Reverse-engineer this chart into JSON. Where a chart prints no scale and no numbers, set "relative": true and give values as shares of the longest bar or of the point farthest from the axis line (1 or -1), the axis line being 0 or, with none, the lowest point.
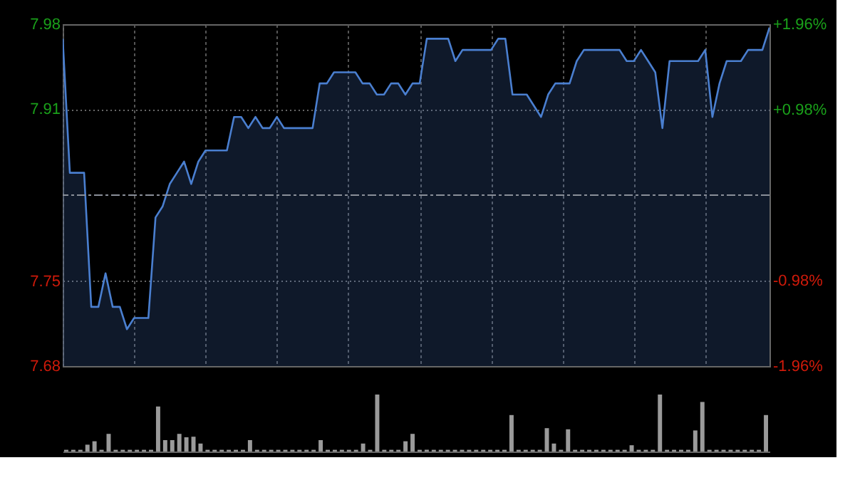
{
  "chart_data": [
    {
      "type": "area",
      "color": "#4a7fd0",
      "grid": true,
      "categories": [
        null,
        null,
        null,
        null,
        null,
        null,
        null,
        null,
        null,
        null,
        null,
        null,
        null,
        null,
        null,
        null,
        null,
        null,
        null,
        null,
        null,
        null,
        null,
        null,
        null,
        null,
        null,
        null,
        null,
        null,
        null,
        null,
        null,
        null,
        null,
        null,
        null,
        null,
        null,
        null,
        null,
        null,
        null,
        null,
        null,
        null,
        null,
        null,
        null,
        null,
        null,
        null,
        null,
        null,
        null,
        null,
        null,
        null,
        null,
        null,
        null,
        null,
        null,
        null,
        null,
        null,
        null,
        null,
        null,
        null,
        null,
        null,
        null,
        null,
        null,
        null,
        null,
        null,
        null,
        null,
        null,
        null,
        null,
        null,
        null,
        null,
        null,
        null,
        null,
        null,
        null,
        null,
        null,
        null,
        null,
        null,
        null,
        null,
        null,
        null
      ],
      "values": [
        7.97,
        7.85,
        7.85,
        7.85,
        7.73,
        7.73,
        7.76,
        7.73,
        7.73,
        7.71,
        7.72,
        7.72,
        7.72,
        7.81,
        7.82,
        7.84,
        7.85,
        7.86,
        7.84,
        7.86,
        7.87,
        7.87,
        7.87,
        7.87,
        7.9,
        7.9,
        7.89,
        7.9,
        7.89,
        7.89,
        7.9,
        7.89,
        7.89,
        7.89,
        7.89,
        7.89,
        7.93,
        7.93,
        7.94,
        7.94,
        7.94,
        7.94,
        7.93,
        7.93,
        7.92,
        7.92,
        7.93,
        7.93,
        7.92,
        7.93,
        7.93,
        7.97,
        7.97,
        7.97,
        7.97,
        7.95,
        7.96,
        7.96,
        7.96,
        7.96,
        7.96,
        7.97,
        7.97,
        7.92,
        7.92,
        7.92,
        7.91,
        7.9,
        7.92,
        7.93,
        7.93,
        7.93,
        7.95,
        7.96,
        7.96,
        7.96,
        7.96,
        7.96,
        7.96,
        7.95,
        7.95,
        7.96,
        7.95,
        7.94,
        7.89,
        7.95,
        7.95,
        7.95,
        7.95,
        7.95,
        7.96,
        7.9,
        7.93,
        7.95,
        7.95,
        7.95,
        7.96,
        7.96,
        7.96,
        7.98
      ],
      "ylim": [
        7.677,
        7.983
      ],
      "yticks": [
        {
          "value": 7.677,
          "label": "7.68"
        },
        {
          "value": 7.753,
          "label": "7.75"
        },
        {
          "value": 7.907,
          "label": "7.91"
        },
        {
          "value": 7.983,
          "label": "7.98"
        }
      ],
      "y2lim": [
        -1.96,
        1.96
      ],
      "y2ticks": [
        {
          "value": -1.96,
          "label": "-1.96%"
        },
        {
          "value": -0.98,
          "label": "-0.98%"
        },
        {
          "value": 0.98,
          "label": "+0.98%"
        },
        {
          "value": 1.96,
          "label": "+1.96%"
        }
      ],
      "ref_lines": [
        {
          "axis": "y2",
          "value": 0,
          "line_style": "dashed",
          "color": "#8a8f99"
        }
      ]
    },
    {
      "type": "bar",
      "relative": true,
      "color": "#9a9a9a",
      "categories": [
        null,
        null,
        null,
        null,
        null,
        null,
        null,
        null,
        null,
        null,
        null,
        null,
        null,
        null,
        null,
        null,
        null,
        null,
        null,
        null,
        null,
        null,
        null,
        null,
        null,
        null,
        null,
        null,
        null,
        null,
        null,
        null,
        null,
        null,
        null,
        null,
        null,
        null,
        null,
        null,
        null,
        null,
        null,
        null,
        null,
        null,
        null,
        null,
        null,
        null,
        null,
        null,
        null,
        null,
        null,
        null,
        null,
        null,
        null,
        null,
        null,
        null,
        null,
        null,
        null,
        null,
        null,
        null,
        null,
        null,
        null,
        null,
        null,
        null,
        null,
        null,
        null,
        null,
        null,
        null,
        null,
        null,
        null,
        null,
        null,
        null,
        null,
        null,
        null,
        null,
        null,
        null,
        null,
        null,
        null,
        null,
        null,
        null,
        null,
        null
      ],
      "values": [
        0.03,
        0.03,
        0.03,
        0.12,
        0.18,
        0.03,
        0.31,
        0.03,
        0.03,
        0.03,
        0.03,
        0.03,
        0.03,
        0.79,
        0.2,
        0.2,
        0.31,
        0.25,
        0.26,
        0.14,
        0.03,
        0.03,
        0.03,
        0.03,
        0.03,
        0.03,
        0.2,
        0.03,
        0.03,
        0.03,
        0.03,
        0.03,
        0.03,
        0.03,
        0.03,
        0.03,
        0.2,
        0.03,
        0.03,
        0.03,
        0.03,
        0.03,
        0.14,
        0.03,
        1.0,
        0.03,
        0.03,
        0.03,
        0.18,
        0.31,
        0.03,
        0.03,
        0.03,
        0.03,
        0.03,
        0.03,
        0.03,
        0.03,
        0.03,
        0.03,
        0.03,
        0.03,
        0.03,
        0.64,
        0.03,
        0.03,
        0.03,
        0.03,
        0.41,
        0.14,
        0.03,
        0.39,
        0.03,
        0.03,
        0.03,
        0.03,
        0.03,
        0.03,
        0.03,
        0.03,
        0.11,
        0.03,
        0.03,
        0.03,
        1.0,
        0.03,
        0.03,
        0.03,
        0.03,
        0.37,
        0.87,
        0.03,
        0.03,
        0.03,
        0.03,
        0.03,
        0.03,
        0.03,
        0.03,
        0.64
      ]
    }
  ]
}
